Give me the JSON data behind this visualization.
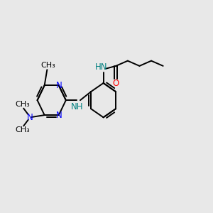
{
  "bg_color": "#e8e8e8",
  "bond_color": "#000000",
  "nitrogen_color": "#0000ff",
  "oxygen_color": "#ff0000",
  "nh_color": "#008080",
  "line_width": 1.4,
  "font_size": 8.5,
  "fig_size": [
    3.0,
    3.0
  ],
  "dpi": 100,
  "xlim": [
    0,
    12
  ],
  "ylim": [
    0,
    10
  ]
}
